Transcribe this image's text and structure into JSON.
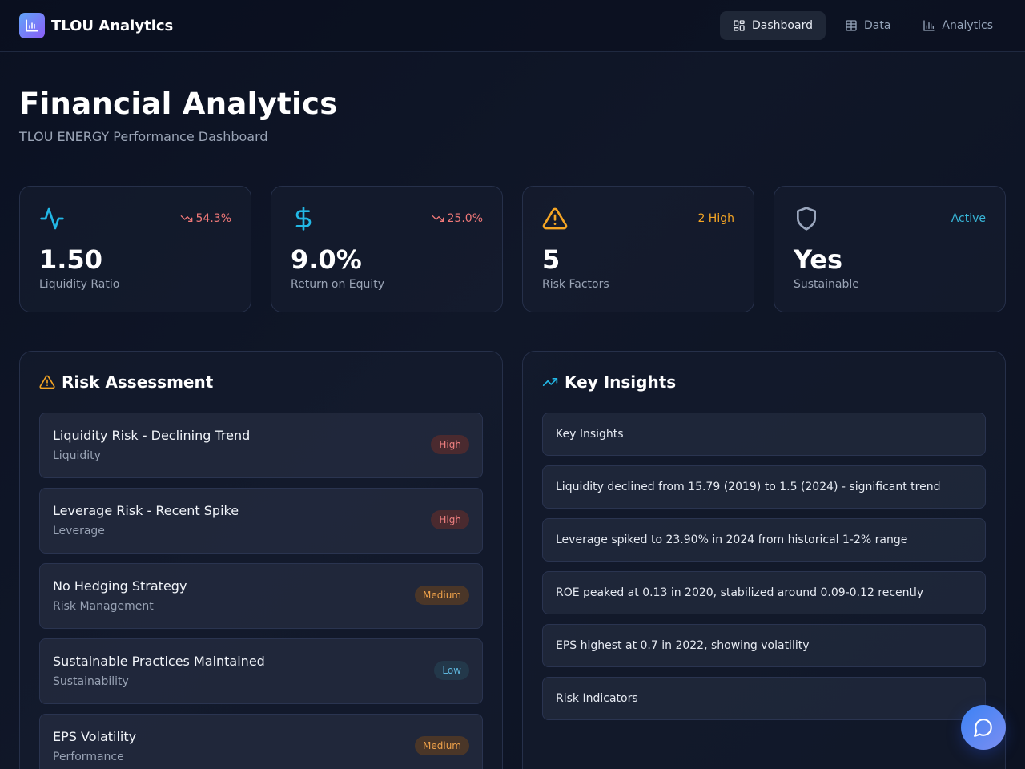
{
  "app": {
    "name": "TLOU Analytics"
  },
  "nav": {
    "items": [
      {
        "label": "Dashboard",
        "icon": "dashboard-icon",
        "active": true
      },
      {
        "label": "Data",
        "icon": "table-icon",
        "active": false
      },
      {
        "label": "Analytics",
        "icon": "bar-chart-icon",
        "active": false
      }
    ]
  },
  "header": {
    "title": "Financial Analytics",
    "subtitle": "TLOU ENERGY Performance Dashboard"
  },
  "metrics": [
    {
      "icon": "activity-icon",
      "change": "54.3%",
      "trend": "down",
      "value": "1.50",
      "label": "Liquidity Ratio",
      "color": "#22b8e6",
      "change_color": "#f07878"
    },
    {
      "icon": "dollar-icon",
      "change": "25.0%",
      "trend": "down",
      "value": "9.0%",
      "label": "Return on Equity",
      "color": "#22b8e6",
      "change_color": "#f07878"
    },
    {
      "icon": "warning-icon",
      "change": "2 High",
      "trend": "none",
      "value": "5",
      "label": "Risk Factors",
      "color": "#f5a524",
      "change_color": "#f5a524"
    },
    {
      "icon": "shield-icon",
      "change": "Active",
      "trend": "none",
      "value": "Yes",
      "label": "Sustainable",
      "color": "#9aa6bd",
      "change_color": "#38b6d8"
    }
  ],
  "risk_panel": {
    "title": "Risk Assessment",
    "items": [
      {
        "title": "Liquidity Risk - Declining Trend",
        "category": "Liquidity",
        "level": "High"
      },
      {
        "title": "Leverage Risk - Recent Spike",
        "category": "Leverage",
        "level": "High"
      },
      {
        "title": "No Hedging Strategy",
        "category": "Risk Management",
        "level": "Medium"
      },
      {
        "title": "Sustainable Practices Maintained",
        "category": "Sustainability",
        "level": "Low"
      },
      {
        "title": "EPS Volatility",
        "category": "Performance",
        "level": "Medium"
      }
    ]
  },
  "insights_panel": {
    "title": "Key Insights",
    "items": [
      "Key Insights",
      "Liquidity declined from 15.79 (2019) to 1.5 (2024) - significant trend",
      "Leverage spiked to 23.90% in 2024 from historical 1-2% range",
      "ROE peaked at 0.13 in 2020, stabilized around 0.09-0.12 recently",
      "EPS highest at 0.7 in 2022, showing volatility",
      "Risk Indicators"
    ]
  },
  "colors": {
    "accent": "#3b82f6",
    "high": "#f08080",
    "medium": "#f0a24a",
    "low": "#5eb6dc"
  }
}
